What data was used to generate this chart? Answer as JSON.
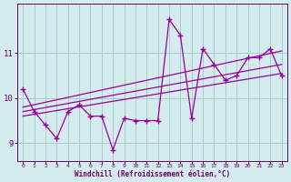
{
  "hours": [
    0,
    1,
    2,
    3,
    4,
    5,
    6,
    7,
    8,
    9,
    10,
    11,
    12,
    13,
    14,
    15,
    16,
    17,
    18,
    19,
    20,
    21,
    22,
    23
  ],
  "windchill": [
    10.2,
    9.7,
    9.4,
    9.1,
    9.7,
    9.85,
    9.6,
    9.6,
    8.85,
    9.55,
    9.5,
    9.5,
    9.5,
    11.75,
    11.4,
    9.55,
    11.1,
    10.75,
    10.4,
    10.5,
    10.9,
    10.9,
    11.1,
    10.5
  ],
  "trend1_x": [
    0,
    23
  ],
  "trend1_y": [
    9.6,
    10.55
  ],
  "trend2_x": [
    0,
    23
  ],
  "trend2_y": [
    9.7,
    10.75
  ],
  "trend3_x": [
    0,
    23
  ],
  "trend3_y": [
    9.8,
    11.05
  ],
  "line_color": "#990099",
  "bg_color": "#d4ecee",
  "grid_color": "#aacccc",
  "text_color": "#660066",
  "xlabel": "Windchill (Refroidissement éolien,°C)",
  "ylim": [
    8.6,
    12.1
  ],
  "xlim": [
    -0.5,
    23.5
  ],
  "yticks": [
    9,
    10,
    11
  ],
  "ytick_labels": [
    "9",
    "10",
    "11"
  ]
}
